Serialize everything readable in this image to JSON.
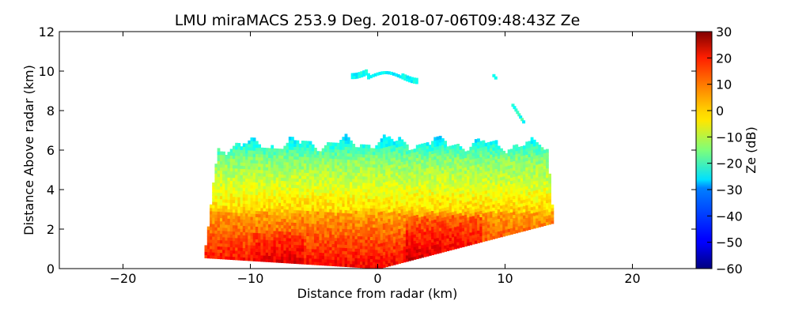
{
  "chart_data": {
    "type": "heatmap",
    "title": "LMU miraMACS 253.9 Deg. 2018-07-06T09:48:43Z  Ze",
    "xlabel": "Distance from radar (km)",
    "ylabel": "Distance Above radar  (km)",
    "xlim": [
      -25,
      25
    ],
    "ylim": [
      0,
      12
    ],
    "x_ticks": [
      -20,
      -10,
      0,
      10,
      20
    ],
    "x_tick_labels": [
      "−20",
      "−10",
      "0",
      "10",
      "20"
    ],
    "y_ticks": [
      0,
      2,
      4,
      6,
      8,
      10,
      12
    ],
    "y_tick_labels": [
      "0",
      "2",
      "4",
      "6",
      "8",
      "10",
      "12"
    ],
    "colorbar": {
      "label": "Ze (dB)",
      "range": [
        -60,
        30
      ],
      "colormap": "jet",
      "ticks": [
        30,
        20,
        10,
        0,
        -10,
        -20,
        -30,
        -40,
        -50,
        -60
      ],
      "tick_labels": [
        "30",
        "20",
        "10",
        "0",
        "−10",
        "−20",
        "−30",
        "−40",
        "−50",
        "−60"
      ]
    },
    "echo_regions": [
      {
        "name": "main-echo-layer",
        "ze_range_db": [
          -25,
          25
        ],
        "x_extent_km": [
          -13.8,
          13.7
        ],
        "top_km": 6.9,
        "bottom_km": 0
      },
      {
        "name": "high-cloud-fragment",
        "ze_range_db": [
          -30,
          -22
        ],
        "center_km": [
          0.5,
          9.6
        ]
      },
      {
        "name": "small-echo-right",
        "ze_range_db": [
          -28,
          -18
        ],
        "center_km": [
          11.0,
          7.8
        ]
      },
      {
        "name": "speck-echo",
        "ze_range_db": [
          -25,
          -25
        ],
        "center_km": [
          9.0,
          9.7
        ]
      }
    ]
  }
}
